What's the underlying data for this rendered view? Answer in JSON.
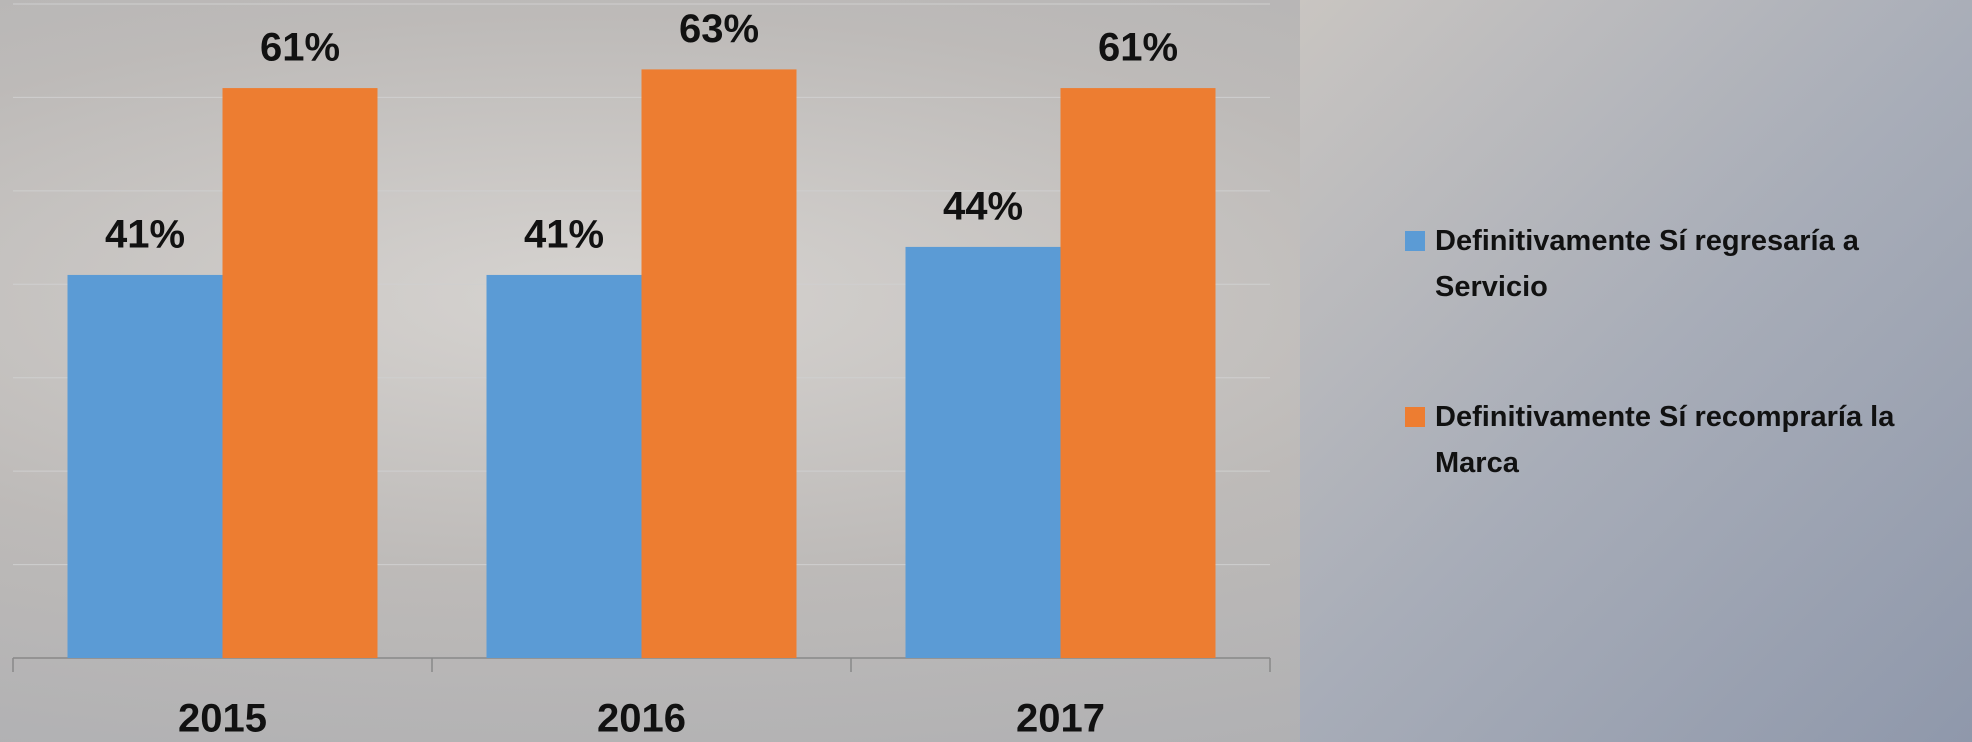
{
  "chart_data": {
    "type": "bar",
    "categories": [
      "2015",
      "2016",
      "2017"
    ],
    "series": [
      {
        "name": "Definitivamente Sí regresaría a Servicio",
        "color": "#5b9bd5",
        "values": [
          41,
          41,
          44
        ],
        "value_labels": [
          "41%",
          "41%",
          "44%"
        ]
      },
      {
        "name": "Definitivamente Sí recompraría la Marca",
        "color": "#ed7d31",
        "values": [
          61,
          63,
          61
        ],
        "value_labels": [
          "61%",
          "63%",
          "61%"
        ]
      }
    ],
    "ylim": [
      0,
      70
    ],
    "yticks": [
      0,
      10,
      20,
      30,
      40,
      50,
      60,
      70
    ],
    "grid": true,
    "legend": "right"
  }
}
